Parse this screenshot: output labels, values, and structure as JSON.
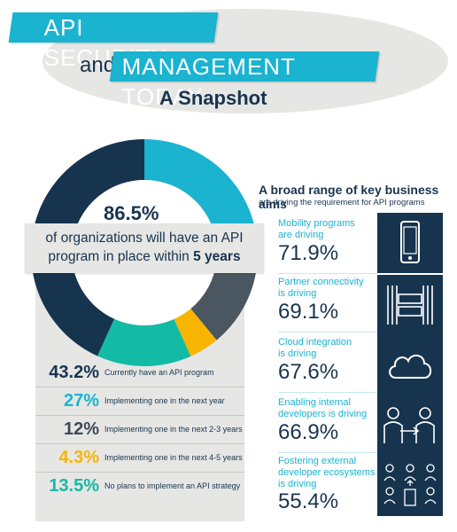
{
  "header": {
    "title_line1": "API SECURITY",
    "title_and": "and",
    "title_line2": "MANAGEMENT TODAY",
    "subtitle": "A Snapshot"
  },
  "headline": {
    "percent": "86.5%",
    "text_line1": "of organizations will have an API",
    "text_line2_prefix": "program in place within ",
    "text_line2_bold": "5 years"
  },
  "colors": {
    "navy": "#17344f",
    "cyan": "#1ab3d0",
    "teal": "#13bba6",
    "yellow": "#f7b500",
    "slate": "#4a5760",
    "gray": "#e6e6e4"
  },
  "stats": [
    {
      "percent": "43.2%",
      "label": "Currently have an API program",
      "color": "#17344f"
    },
    {
      "percent": "27%",
      "label": "Implementing one in the next year",
      "color": "#1ab3d0"
    },
    {
      "percent": "12%",
      "label": "Implementing one in the next 2-3 years",
      "color": "#3d4a55"
    },
    {
      "percent": "4.3%",
      "label": "Implementing one in the next 4-5 years",
      "color": "#f7b500"
    },
    {
      "percent": "13.5%",
      "label": "No plans to implement an API strategy",
      "color": "#13bba6"
    }
  ],
  "aims": {
    "title": "A broad range of key business aims",
    "subtitle": "are driving the requirement for API programs",
    "items": [
      {
        "label_line1": "Mobility programs",
        "label_line2": "are driving",
        "label_line3": "",
        "percent": "71.9%",
        "icon": "smartphone-icon"
      },
      {
        "label_line1": "Partner connectivity",
        "label_line2": "is driving",
        "label_line3": "",
        "percent": "69.1%",
        "icon": "partner-gateway-icon"
      },
      {
        "label_line1": "Cloud integration",
        "label_line2": "is driving",
        "label_line3": "",
        "percent": "67.6%",
        "icon": "cloud-icon"
      },
      {
        "label_line1": "Enabling internal",
        "label_line2": "developers is driving",
        "label_line3": "",
        "percent": "66.9%",
        "icon": "internal-developers-icon"
      },
      {
        "label_line1": "Fostering external",
        "label_line2": "developer ecosystems",
        "label_line3": "is driving",
        "percent": "55.4%",
        "icon": "developer-ecosystem-icon"
      }
    ]
  }
}
